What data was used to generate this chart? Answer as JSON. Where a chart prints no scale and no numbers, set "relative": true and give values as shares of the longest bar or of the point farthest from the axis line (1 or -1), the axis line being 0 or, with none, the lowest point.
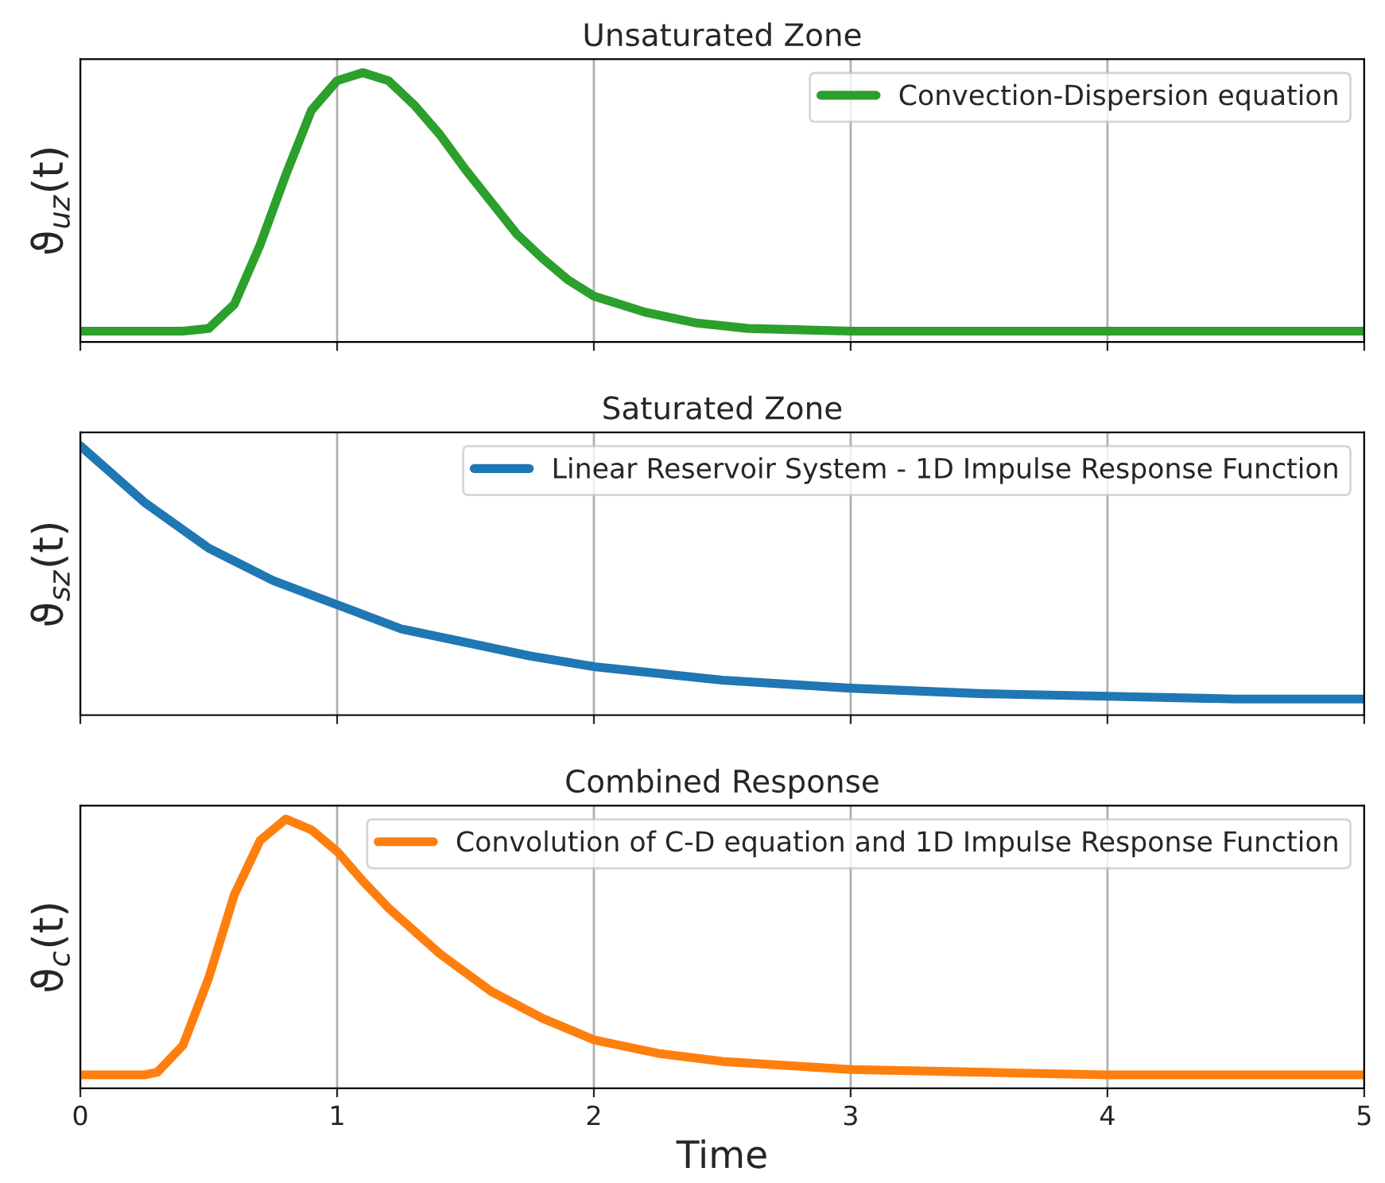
{
  "chart_data": [
    {
      "type": "line",
      "title": "Unsaturated Zone",
      "ylabel": "ϑ$_{uz}$(t)",
      "relative": true,
      "xlim": [
        0,
        5
      ],
      "xticks": [
        0,
        1,
        2,
        3,
        4,
        5
      ],
      "tick_labels": false,
      "grid": "x",
      "legend": "top right",
      "series": [
        {
          "name": "Convection-Dispersion equation",
          "color": "#2ca02c",
          "x": [
            0,
            0.4,
            0.5,
            0.6,
            0.7,
            0.8,
            0.9,
            1.0,
            1.1,
            1.2,
            1.3,
            1.4,
            1.5,
            1.6,
            1.7,
            1.8,
            1.9,
            2.0,
            2.2,
            2.4,
            2.6,
            3.0,
            3.5,
            4.0,
            5.0
          ],
          "values": [
            0.04,
            0.04,
            0.05,
            0.14,
            0.36,
            0.62,
            0.86,
            0.97,
            1.0,
            0.97,
            0.88,
            0.77,
            0.64,
            0.52,
            0.4,
            0.31,
            0.23,
            0.17,
            0.11,
            0.07,
            0.05,
            0.04,
            0.04,
            0.04,
            0.04
          ]
        }
      ]
    },
    {
      "type": "line",
      "title": "Saturated Zone",
      "ylabel": "ϑ$_{sz}$(t)",
      "relative": true,
      "xlim": [
        0,
        5
      ],
      "xticks": [
        0,
        1,
        2,
        3,
        4,
        5
      ],
      "tick_labels": false,
      "grid": "x",
      "legend": "top right",
      "series": [
        {
          "name": "Linear Reservoir System - 1D Impulse Response Function",
          "color": "#1f77b4",
          "x": [
            0,
            0.25,
            0.5,
            0.75,
            1,
            1.25,
            1.5,
            1.75,
            2,
            2.5,
            3,
            3.5,
            4,
            4.5,
            5
          ],
          "values": [
            1,
            0.79,
            0.62,
            0.5,
            0.41,
            0.32,
            0.27,
            0.22,
            0.18,
            0.13,
            0.1,
            0.08,
            0.07,
            0.06,
            0.06
          ]
        }
      ]
    },
    {
      "type": "line",
      "title": "Combined Response",
      "ylabel": "ϑ$_{c}$(t)",
      "xlabel": "Time",
      "relative": true,
      "xlim": [
        0,
        5
      ],
      "xticks": [
        0,
        1,
        2,
        3,
        4,
        5
      ],
      "tick_labels": "x",
      "grid": "x",
      "legend": "top right",
      "series": [
        {
          "name": "Convolution of C-D equation and 1D Impulse Response Function",
          "color": "#ff7f0e",
          "x": [
            0,
            0.25,
            0.3,
            0.4,
            0.5,
            0.6,
            0.7,
            0.8,
            0.9,
            1.0,
            1.1,
            1.2,
            1.4,
            1.6,
            1.8,
            2.0,
            2.25,
            2.5,
            3.0,
            3.5,
            4.0,
            5.0
          ],
          "values": [
            0.05,
            0.05,
            0.06,
            0.16,
            0.41,
            0.72,
            0.92,
            1.0,
            0.96,
            0.88,
            0.77,
            0.67,
            0.5,
            0.36,
            0.26,
            0.18,
            0.13,
            0.1,
            0.07,
            0.06,
            0.05,
            0.05
          ]
        }
      ]
    }
  ]
}
